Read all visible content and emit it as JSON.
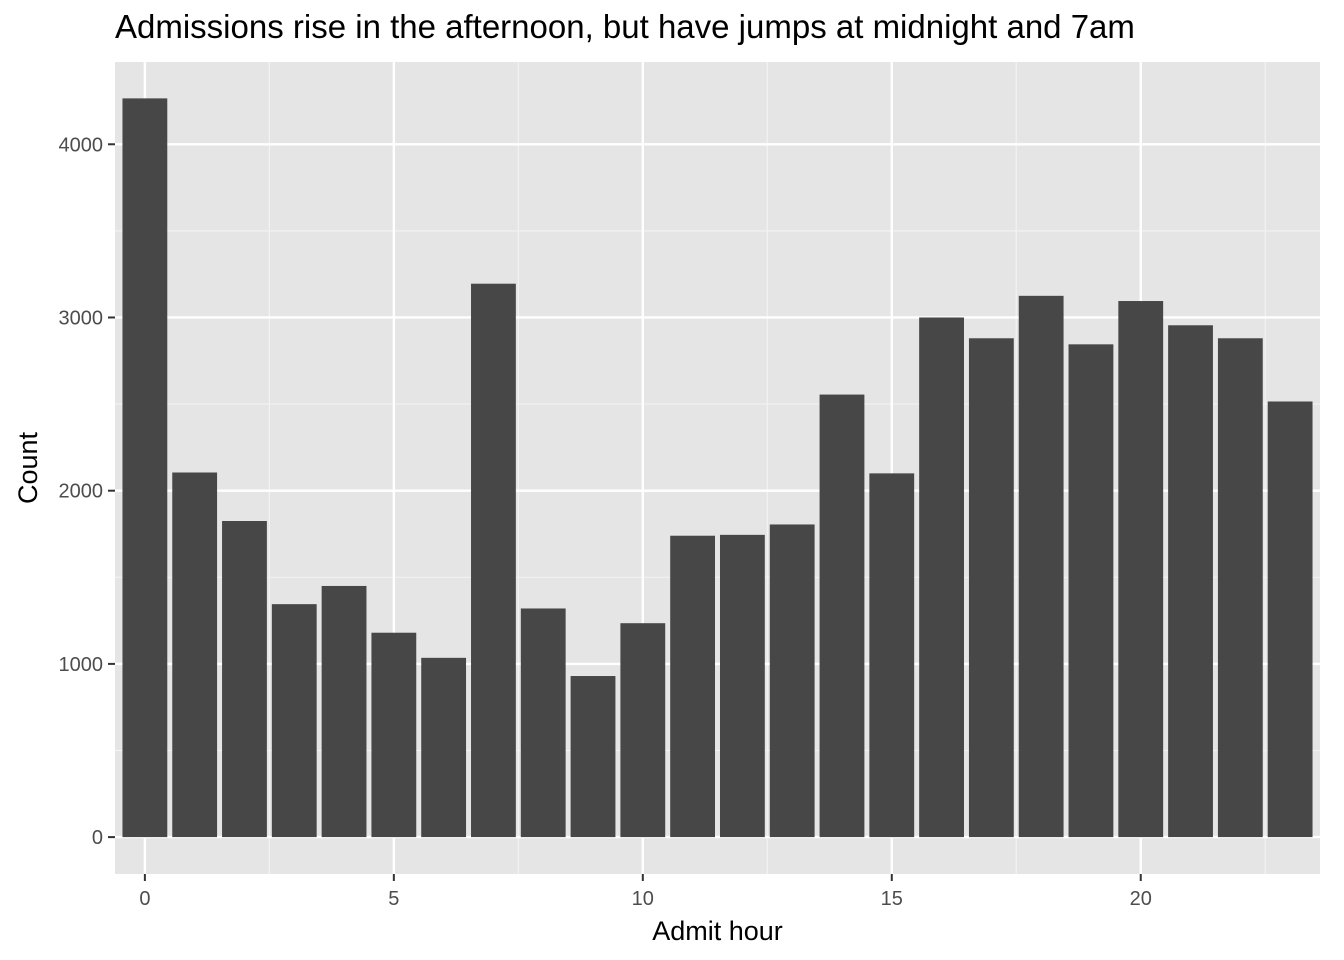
{
  "chart_data": {
    "type": "bar",
    "title": "Admissions rise in the afternoon, but have jumps at midnight and 7am",
    "xlabel": "Admit hour",
    "ylabel": "Count",
    "x": [
      0,
      1,
      2,
      3,
      4,
      5,
      6,
      7,
      8,
      9,
      10,
      11,
      12,
      13,
      14,
      15,
      16,
      17,
      18,
      19,
      20,
      21,
      22,
      23
    ],
    "values": [
      4265,
      2105,
      1825,
      1345,
      1450,
      1180,
      1035,
      3195,
      1320,
      930,
      1235,
      1740,
      1745,
      1805,
      2555,
      2100,
      3000,
      2880,
      3125,
      2845,
      3095,
      2955,
      2880,
      2515
    ],
    "xlim": [
      -0.6,
      23.6
    ],
    "ylim": [
      -213,
      4475
    ],
    "x_ticks": [
      0,
      5,
      10,
      15,
      20
    ],
    "x_tick_labels": [
      "0",
      "5",
      "10",
      "15",
      "20"
    ],
    "y_ticks": [
      0,
      1000,
      2000,
      3000,
      4000
    ],
    "y_tick_labels": [
      "0",
      "1000",
      "2000",
      "3000",
      "4000"
    ],
    "bar_color": "#474747",
    "panel_color": "#e5e5e5",
    "grid": true
  }
}
